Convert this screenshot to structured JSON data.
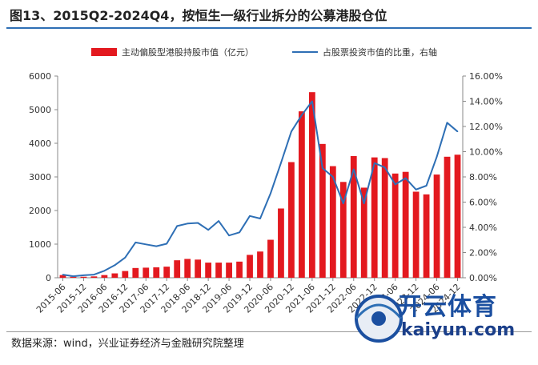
{
  "title": "图13、2015Q2-2024Q4，按恒生一级行业拆分的公募港股仓位",
  "source": "数据来源：wind，兴业证券经济与金融研究院整理",
  "watermark": {
    "brand": "开云体育",
    "url": "kaiyun.com"
  },
  "colors": {
    "bar": "#e3191f",
    "line": "#2e6fb5",
    "axis": "#888888",
    "accent": "#2e6fb5"
  },
  "chart_data": {
    "type": "bar",
    "series": [
      {
        "name": "主动偏股型港股持股市值（亿元）",
        "type": "bar",
        "axis": "left",
        "values": [
          80,
          30,
          30,
          40,
          80,
          130,
          200,
          290,
          300,
          310,
          330,
          520,
          560,
          540,
          450,
          450,
          450,
          480,
          680,
          780,
          1130,
          2060,
          3440,
          4950,
          5520,
          3980,
          3320,
          2850,
          3620,
          2680,
          3580,
          3560,
          3100,
          3150,
          2560,
          2480,
          3070,
          3600,
          3660
        ]
      },
      {
        "name": "占股票投资市值的比重，右轴",
        "type": "line",
        "axis": "right",
        "values": [
          0.25,
          0.12,
          0.2,
          0.25,
          0.55,
          1.0,
          1.6,
          2.8,
          2.65,
          2.5,
          2.7,
          4.1,
          4.3,
          4.35,
          3.8,
          4.5,
          3.35,
          3.6,
          4.9,
          4.7,
          6.7,
          9.1,
          11.6,
          12.9,
          14.0,
          8.7,
          8.0,
          5.9,
          8.6,
          5.9,
          9.1,
          8.75,
          7.4,
          7.9,
          7.0,
          7.3,
          9.6,
          12.3,
          11.6
        ]
      }
    ],
    "x_tick_labels": [
      "2015-06",
      "2015-12",
      "2016-06",
      "2016-12",
      "2017-06",
      "2017-12",
      "2018-06",
      "2018-12",
      "2019-06",
      "2019-12",
      "2020-06",
      "2020-12",
      "2021-06",
      "2021-12",
      "2022-06",
      "2022-12",
      "2023-06",
      "2023-12",
      "2024-06",
      "2024-12"
    ],
    "y_left": {
      "min": 0,
      "max": 6000,
      "ticks": [
        "0",
        "1000",
        "2000",
        "3000",
        "4000",
        "5000",
        "6000"
      ]
    },
    "y_right": {
      "min": 0,
      "max": 16,
      "ticks": [
        "0.00%",
        "2.00%",
        "4.00%",
        "6.00%",
        "8.00%",
        "10.00%",
        "12.00%",
        "14.00%",
        "16.00%"
      ]
    },
    "legend_position": "top",
    "grid": false
  }
}
